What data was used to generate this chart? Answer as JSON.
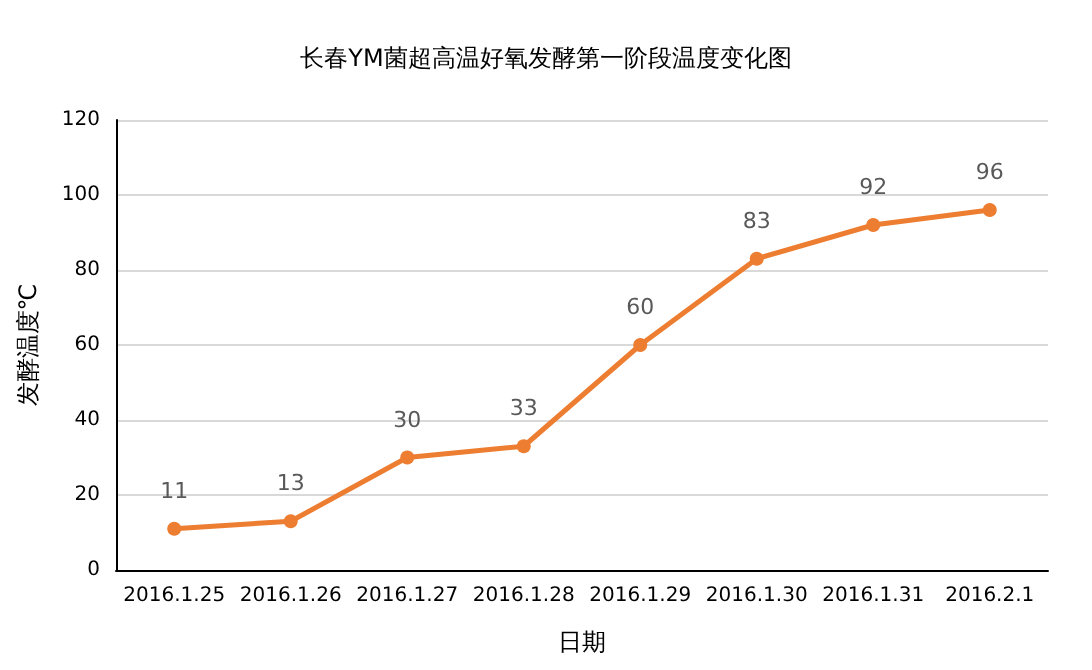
{
  "chart_data": {
    "type": "line",
    "title": "长春YM菌超高温好氧发酵第一阶段温度变化图",
    "xlabel": "日期",
    "ylabel": "发酵温度℃",
    "categories": [
      "2016.1.25",
      "2016.1.26",
      "2016.1.27",
      "2016.1.28",
      "2016.1.29",
      "2016.1.30",
      "2016.1.31",
      "2016.2.1"
    ],
    "series": [
      {
        "color": "#ed7d31",
        "values": [
          11,
          13,
          30,
          33,
          60,
          83,
          92,
          96
        ]
      }
    ],
    "ylim": [
      0,
      120
    ],
    "yticks": [
      0,
      20,
      40,
      60,
      80,
      100,
      120
    ],
    "grid": "y",
    "marker": "circle",
    "data_labels": true
  }
}
